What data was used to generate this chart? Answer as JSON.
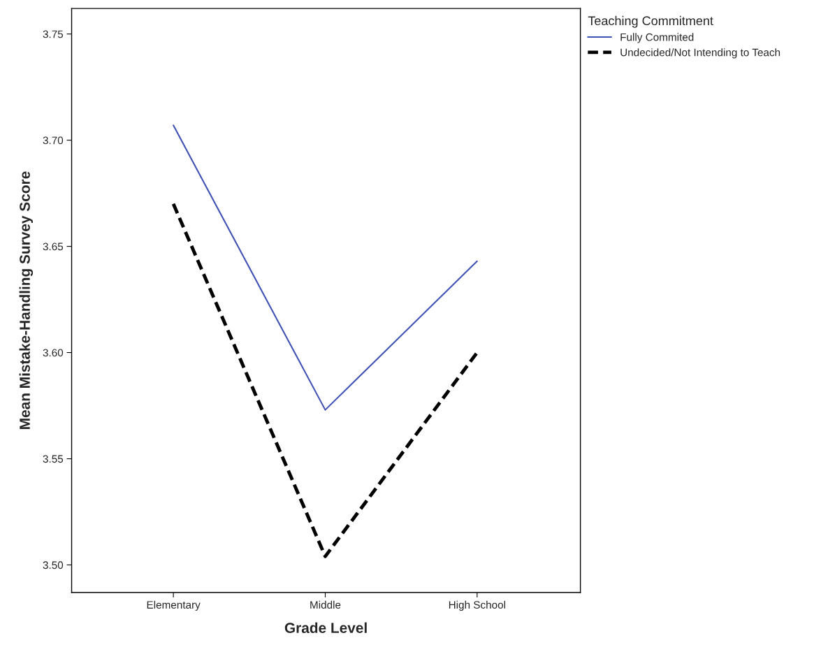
{
  "chart_data": {
    "type": "line",
    "xlabel": "Grade Level",
    "ylabel": "Mean Mistake-Handling Survey Score",
    "legend_title": "Teaching Commitment",
    "categories": [
      "Elementary",
      "Middle",
      "High School"
    ],
    "series": [
      {
        "name": "Fully Commited",
        "color": "#3f51b5",
        "values": [
          3.707,
          3.573,
          3.643
        ],
        "line_style": "solid"
      },
      {
        "name": "Undecided/Not Intending to Teach",
        "color": "#000000",
        "values": [
          3.67,
          3.504,
          3.6
        ],
        "line_style": "dashed"
      }
    ],
    "ylim": [
      3.487,
      3.762
    ],
    "yticks": [
      {
        "value": 3.5,
        "label": "3.50"
      },
      {
        "value": 3.55,
        "label": "3.55"
      },
      {
        "value": 3.6,
        "label": "3.60"
      },
      {
        "value": 3.65,
        "label": "3.65"
      },
      {
        "value": 3.7,
        "label": "3.70"
      },
      {
        "value": 3.75,
        "label": "3.75"
      }
    ],
    "grid": false,
    "legend": "top right",
    "marker": "none"
  }
}
